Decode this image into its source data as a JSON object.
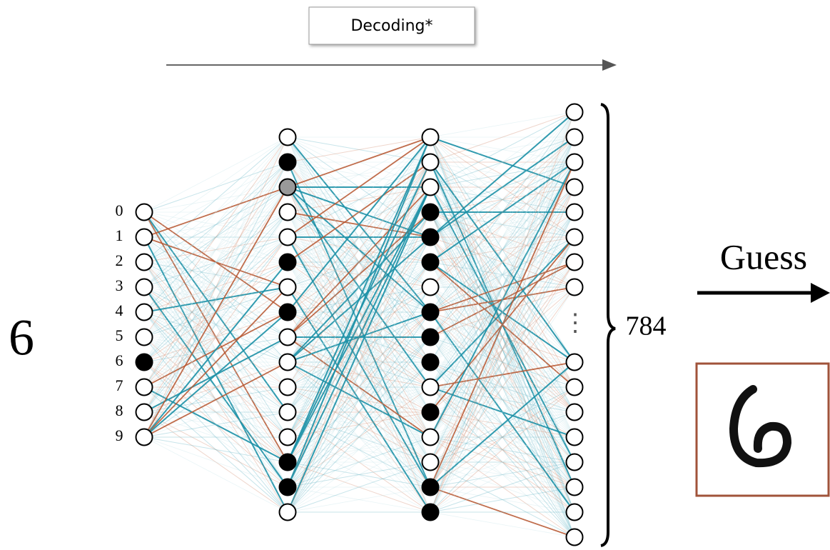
{
  "header": {
    "button": "Decoding*"
  },
  "input": {
    "digit": "6",
    "labels": [
      "0",
      "1",
      "2",
      "3",
      "4",
      "5",
      "6",
      "7",
      "8",
      "9"
    ]
  },
  "output": {
    "size": "784",
    "ellipsis": "⋮"
  },
  "guess": {
    "label": "Guess"
  }
}
